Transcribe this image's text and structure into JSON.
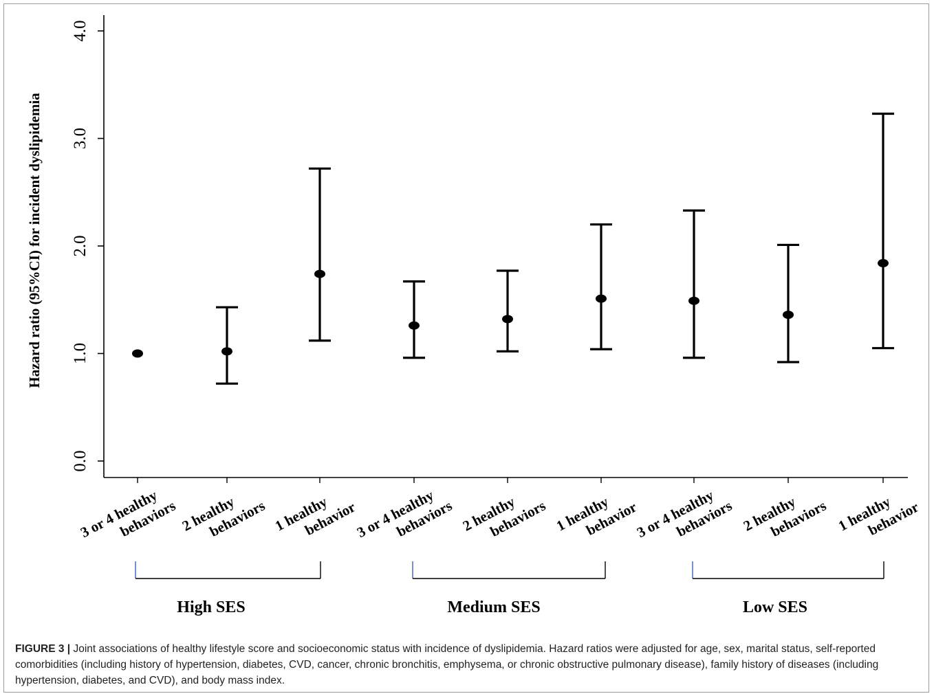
{
  "chart_data": {
    "type": "scatter",
    "ylabel": "Hazard ratio (95%CI) for incident dyslipidemia",
    "y_ticks": [
      "0.0",
      "1.0",
      "2.0",
      "3.0",
      "4.0"
    ],
    "ylim": [
      0,
      4.0
    ],
    "groups": [
      {
        "name": "High SES",
        "points": [
          {
            "label": [
              "3  or 4 healthy",
              "behaviors"
            ],
            "hr": 1.0,
            "lower": 1.0,
            "upper": 1.0
          },
          {
            "label": [
              "2 healthy",
              "behaviors"
            ],
            "hr": 1.02,
            "lower": 0.72,
            "upper": 1.43
          },
          {
            "label": [
              "1 healthy",
              "behavior"
            ],
            "hr": 1.74,
            "lower": 1.12,
            "upper": 2.72
          }
        ]
      },
      {
        "name": "Medium  SES",
        "points": [
          {
            "label": [
              "3  or 4 healthy",
              "behaviors"
            ],
            "hr": 1.26,
            "lower": 0.96,
            "upper": 1.67
          },
          {
            "label": [
              "2 healthy",
              "behaviors"
            ],
            "hr": 1.32,
            "lower": 1.02,
            "upper": 1.77
          },
          {
            "label": [
              "1 healthy",
              "behavior"
            ],
            "hr": 1.51,
            "lower": 1.04,
            "upper": 2.2
          }
        ]
      },
      {
        "name": "Low SES",
        "points": [
          {
            "label": [
              "3  or 4 healthy",
              "behaviors"
            ],
            "hr": 1.49,
            "lower": 0.96,
            "upper": 2.33
          },
          {
            "label": [
              "2 healthy",
              "behaviors"
            ],
            "hr": 1.36,
            "lower": 0.92,
            "upper": 2.01
          },
          {
            "label": [
              "1 healthy",
              "behavior"
            ],
            "hr": 1.84,
            "lower": 1.05,
            "upper": 3.23
          }
        ]
      }
    ]
  },
  "caption": {
    "label": "FIGURE 3 |",
    "text": " Joint associations of healthy lifestyle score and socioeconomic status with incidence of dyslipidemia. Hazard ratios were adjusted for age, sex, marital status, self-reported comorbidities (including history of hypertension, diabetes, CVD, cancer, chronic bronchitis, emphysema, or chronic obstructive pulmonary disease), family history of diseases (including hypertension, diabetes, and CVD), and body mass index."
  }
}
